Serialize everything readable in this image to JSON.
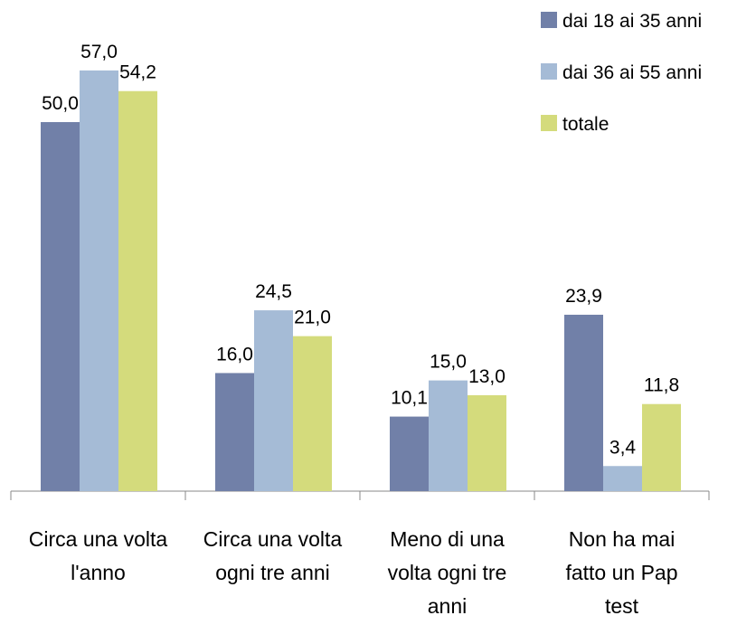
{
  "chart_data": {
    "type": "bar",
    "categories": [
      "Circa una volta\nl'anno",
      "Circa una volta\nogni tre anni",
      "Meno di una\nvolta ogni tre\nanni",
      "Non ha mai\nfatto un Pap\ntest"
    ],
    "series": [
      {
        "name": "dai 18 ai 35 anni",
        "color": "#7180a8",
        "values": [
          50.0,
          16.0,
          10.1,
          23.9
        ],
        "value_labels": [
          "50,0",
          "16,0",
          "10,1",
          "23,9"
        ]
      },
      {
        "name": "dai 36 ai 55 anni",
        "color": "#a5bbd6",
        "values": [
          57.0,
          24.5,
          15.0,
          3.4
        ],
        "value_labels": [
          "57,0",
          "24,5",
          "15,0",
          "3,4"
        ]
      },
      {
        "name": "totale",
        "color": "#d4db7c",
        "values": [
          54.2,
          21.0,
          13.0,
          11.8
        ],
        "value_labels": [
          "54,2",
          "21,0",
          "13,0",
          "11,8"
        ]
      }
    ],
    "legend": "top-right"
  }
}
